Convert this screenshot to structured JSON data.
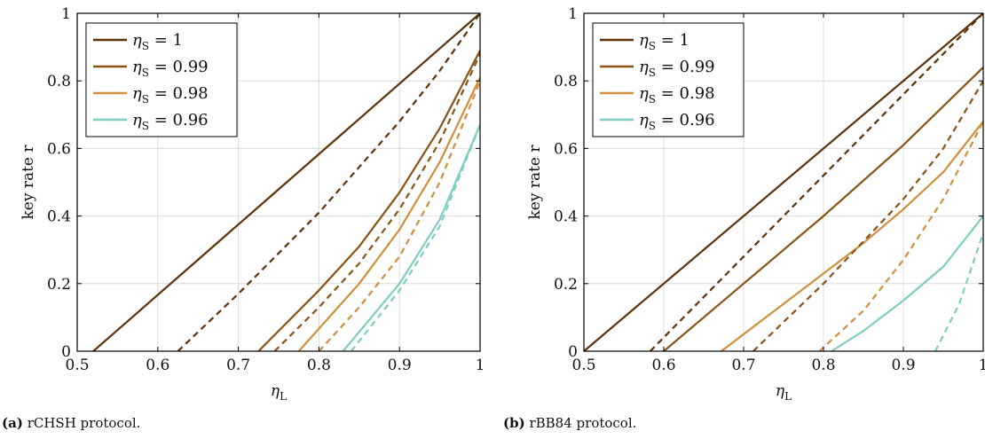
{
  "colors": {
    "s1": "#5c3107",
    "s099": "#8a5214",
    "s098": "#cf8f3c",
    "s096": "#7fcdc2",
    "grid": "#dcdcdc",
    "axis": "#000000"
  },
  "chart_data": [
    {
      "type": "line",
      "caption_label": "(a)",
      "caption_text": "rCHSH protocol.",
      "xlabel": "η",
      "xlabel_sub": "L",
      "ylabel": "key rate r",
      "xlim": [
        0.5,
        1.0
      ],
      "ylim": [
        0,
        1
      ],
      "xticks": [
        0.5,
        0.6,
        0.7,
        0.8,
        0.9,
        1
      ],
      "yticks": [
        0,
        0.2,
        0.4,
        0.6,
        0.8,
        1
      ],
      "xtick_labels": [
        "0.5",
        "0.6",
        "0.7",
        "0.8",
        "0.9",
        "1"
      ],
      "ytick_labels": [
        "0",
        "0.2",
        "0.4",
        "0.6",
        "0.8",
        "1"
      ],
      "grid": true,
      "legend_position": "top-left",
      "series": [
        {
          "name": "η_S = 1",
          "color_key": "s1",
          "style": "solid",
          "points": [
            [
              0.52,
              0
            ],
            [
              1.0,
              1.0
            ]
          ]
        },
        {
          "name": "η_S = 0.99",
          "color_key": "s099",
          "style": "solid",
          "points": [
            [
              0.725,
              0
            ],
            [
              0.8,
              0.18
            ],
            [
              0.85,
              0.31
            ],
            [
              0.9,
              0.47
            ],
            [
              0.95,
              0.66
            ],
            [
              1.0,
              0.89
            ]
          ]
        },
        {
          "name": "η_S = 0.98",
          "color_key": "s098",
          "style": "solid",
          "points": [
            [
              0.775,
              0
            ],
            [
              0.85,
              0.2
            ],
            [
              0.9,
              0.36
            ],
            [
              0.95,
              0.56
            ],
            [
              1.0,
              0.81
            ]
          ]
        },
        {
          "name": "η_S = 0.96",
          "color_key": "s096",
          "style": "solid",
          "points": [
            [
              0.83,
              0
            ],
            [
              0.9,
              0.2
            ],
            [
              0.95,
              0.39
            ],
            [
              1.0,
              0.67
            ]
          ]
        },
        {
          "name": "",
          "color_key": "s1",
          "style": "dashed",
          "points": [
            [
              0.625,
              0
            ],
            [
              0.7,
              0.17
            ],
            [
              0.8,
              0.41
            ],
            [
              0.9,
              0.68
            ],
            [
              0.95,
              0.83
            ],
            [
              1.0,
              1.0
            ]
          ]
        },
        {
          "name": "",
          "color_key": "s099",
          "style": "dashed",
          "points": [
            [
              0.745,
              0
            ],
            [
              0.8,
              0.13
            ],
            [
              0.85,
              0.26
            ],
            [
              0.9,
              0.42
            ],
            [
              0.95,
              0.62
            ],
            [
              1.0,
              0.88
            ]
          ]
        },
        {
          "name": "",
          "color_key": "s098",
          "style": "dashed",
          "points": [
            [
              0.8,
              0
            ],
            [
              0.85,
              0.13
            ],
            [
              0.9,
              0.28
            ],
            [
              0.95,
              0.5
            ],
            [
              1.0,
              0.8
            ]
          ]
        },
        {
          "name": "",
          "color_key": "s096",
          "style": "dashed",
          "points": [
            [
              0.84,
              0
            ],
            [
              0.9,
              0.18
            ],
            [
              0.95,
              0.37
            ],
            [
              1.0,
              0.67
            ]
          ]
        }
      ],
      "legend": [
        {
          "label_main": "η",
          "label_sub": "S",
          "label_value": " = 1",
          "color_key": "s1"
        },
        {
          "label_main": "η",
          "label_sub": "S",
          "label_value": " = 0.99",
          "color_key": "s099"
        },
        {
          "label_main": "η",
          "label_sub": "S",
          "label_value": " = 0.98",
          "color_key": "s098"
        },
        {
          "label_main": "η",
          "label_sub": "S",
          "label_value": " = 0.96",
          "color_key": "s096"
        }
      ]
    },
    {
      "type": "line",
      "caption_label": "(b)",
      "caption_text": "rBB84 protocol.",
      "xlabel": "η",
      "xlabel_sub": "L",
      "ylabel": "key rate r",
      "xlim": [
        0.5,
        1.0
      ],
      "ylim": [
        0,
        1
      ],
      "xticks": [
        0.5,
        0.6,
        0.7,
        0.8,
        0.9,
        1
      ],
      "yticks": [
        0,
        0.2,
        0.4,
        0.6,
        0.8,
        1
      ],
      "xtick_labels": [
        "0.5",
        "0.6",
        "0.7",
        "0.8",
        "0.9",
        "1"
      ],
      "ytick_labels": [
        "0",
        "0.2",
        "0.4",
        "0.6",
        "0.8",
        "1"
      ],
      "grid": true,
      "legend_position": "top-left",
      "series": [
        {
          "name": "η_S = 1",
          "color_key": "s1",
          "style": "solid",
          "points": [
            [
              0.5,
              0
            ],
            [
              1.0,
              1.0
            ]
          ]
        },
        {
          "name": "η_S = 0.99",
          "color_key": "s099",
          "style": "solid",
          "points": [
            [
              0.6,
              0
            ],
            [
              0.7,
              0.2
            ],
            [
              0.8,
              0.4
            ],
            [
              0.9,
              0.61
            ],
            [
              1.0,
              0.84
            ]
          ]
        },
        {
          "name": "η_S = 0.98",
          "color_key": "s098",
          "style": "solid",
          "points": [
            [
              0.672,
              0
            ],
            [
              0.75,
              0.14
            ],
            [
              0.85,
              0.32
            ],
            [
              0.9,
              0.42
            ],
            [
              0.95,
              0.53
            ],
            [
              1.0,
              0.68
            ]
          ]
        },
        {
          "name": "η_S = 0.96",
          "color_key": "s096",
          "style": "solid",
          "points": [
            [
              0.81,
              0
            ],
            [
              0.85,
              0.06
            ],
            [
              0.9,
              0.15
            ],
            [
              0.95,
              0.25
            ],
            [
              1.0,
              0.4
            ]
          ]
        },
        {
          "name": "",
          "color_key": "s1",
          "style": "dashed",
          "points": [
            [
              0.583,
              0
            ],
            [
              0.7,
              0.28
            ],
            [
              0.8,
              0.52
            ],
            [
              0.9,
              0.76
            ],
            [
              1.0,
              1.0
            ]
          ]
        },
        {
          "name": "",
          "color_key": "s099",
          "style": "dashed",
          "points": [
            [
              0.712,
              0
            ],
            [
              0.8,
              0.2
            ],
            [
              0.9,
              0.45
            ],
            [
              0.95,
              0.6
            ],
            [
              1.0,
              0.8
            ]
          ]
        },
        {
          "name": "",
          "color_key": "s098",
          "style": "dashed",
          "points": [
            [
              0.795,
              0
            ],
            [
              0.85,
              0.12
            ],
            [
              0.9,
              0.27
            ],
            [
              0.95,
              0.45
            ],
            [
              1.0,
              0.68
            ]
          ]
        },
        {
          "name": "",
          "color_key": "s096",
          "style": "dashed",
          "points": [
            [
              0.94,
              0
            ],
            [
              0.97,
              0.14
            ],
            [
              1.0,
              0.35
            ]
          ]
        }
      ],
      "legend": [
        {
          "label_main": "η",
          "label_sub": "S",
          "label_value": " = 1",
          "color_key": "s1"
        },
        {
          "label_main": "η",
          "label_sub": "S",
          "label_value": " = 0.99",
          "color_key": "s099"
        },
        {
          "label_main": "η",
          "label_sub": "S",
          "label_value": " = 0.98",
          "color_key": "s098"
        },
        {
          "label_main": "η",
          "label_sub": "S",
          "label_value": " = 0.96",
          "color_key": "s096"
        }
      ]
    }
  ]
}
